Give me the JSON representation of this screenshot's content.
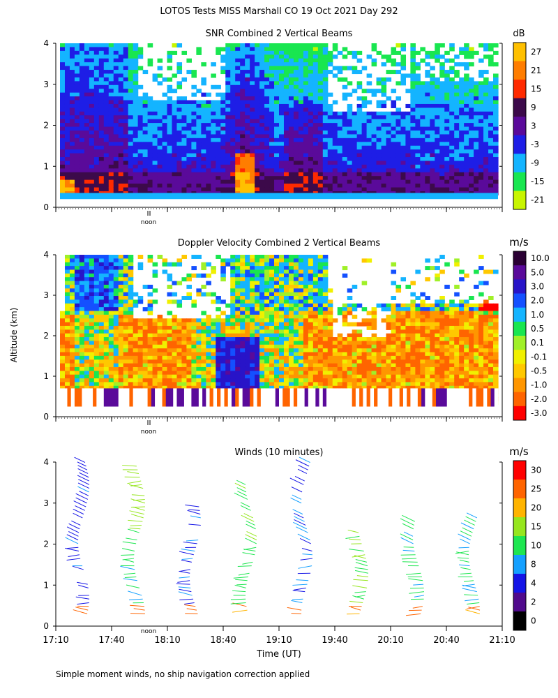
{
  "header": {
    "title": "LOTOS Tests MISS Marshall CO  19 Oct 2021 Day 292"
  },
  "footer": {
    "note": "Simple moment winds, no ship navigation correction applied"
  },
  "y_axis_label": "Altitude (km)",
  "x_axis_label": "Time (UT)",
  "noon_label": "noon",
  "colors": {
    "background": "#ffffff",
    "axis": "#000000"
  },
  "chart_data": [
    {
      "type": "heatmap",
      "title": "SNR Combined 2 Vertical Beams",
      "ylabel": "Altitude (km)",
      "ylim": [
        0,
        4
      ],
      "yticks": [
        "0",
        "1",
        "2",
        "3",
        "4"
      ],
      "xlim": [
        "17:10",
        "21:10"
      ],
      "colorbar": {
        "unit": "dB",
        "labels": [
          "27",
          "21",
          "15",
          "9",
          "3",
          "-3",
          "-9",
          "-15",
          "-21"
        ],
        "colors": [
          "#ffc000",
          "#ff7d00",
          "#ff2a00",
          "#3c0a4a",
          "#5a0a9a",
          "#1e1ee6",
          "#14b4ff",
          "#19e650",
          "#c8f500"
        ]
      },
      "features": [
        "strong returns below 1 km near 18:40 and 19:10",
        "weak returns (white) above 2.5 km around 18:00-19:50"
      ]
    },
    {
      "type": "heatmap",
      "title": "Doppler Velocity Combined 2 Vertical Beams",
      "ylabel": "Altitude (km)",
      "ylim": [
        0,
        4
      ],
      "yticks": [
        "0",
        "1",
        "2",
        "3",
        "4"
      ],
      "xlim": [
        "17:10",
        "21:10"
      ],
      "colorbar": {
        "unit": "m/s",
        "labels": [
          "10.0",
          "5.0",
          "3.0",
          "2.0",
          "1.0",
          "0.5",
          "0.1",
          "-0.1",
          "-0.5",
          "-1.0",
          "-2.0",
          "-3.0"
        ],
        "colors": [
          "#2a0033",
          "#5a0a9a",
          "#2814c8",
          "#1450ff",
          "#14b4ff",
          "#19e650",
          "#a0f028",
          "#f0f000",
          "#ffc800",
          "#ff9600",
          "#ff6400",
          "#ff0000"
        ]
      }
    },
    {
      "type": "wind_barbs",
      "title": "Winds (10 minutes)",
      "ylabel": "Altitude (km)",
      "xlabel": "Time (UT)",
      "ylim": [
        0,
        4
      ],
      "yticks": [
        "0",
        "1",
        "2",
        "3",
        "4"
      ],
      "xlim": [
        "17:10",
        "21:10"
      ],
      "xticks": [
        "17:10",
        "17:40",
        "18:10",
        "18:40",
        "19:10",
        "19:40",
        "20:10",
        "20:40",
        "21:10"
      ],
      "colorbar": {
        "unit": "m/s",
        "labels": [
          "30",
          "25",
          "20",
          "15",
          "10",
          "8",
          "4",
          "2",
          "0"
        ],
        "colors": [
          "#ff0000",
          "#ff6400",
          "#ffb400",
          "#96e61e",
          "#1ee650",
          "#14a0ff",
          "#1414e6",
          "#500a8c",
          "#000000"
        ]
      },
      "profile_times": [
        "17:25",
        "17:55",
        "18:25",
        "18:55",
        "19:25",
        "19:55",
        "20:25",
        "20:55"
      ]
    }
  ]
}
